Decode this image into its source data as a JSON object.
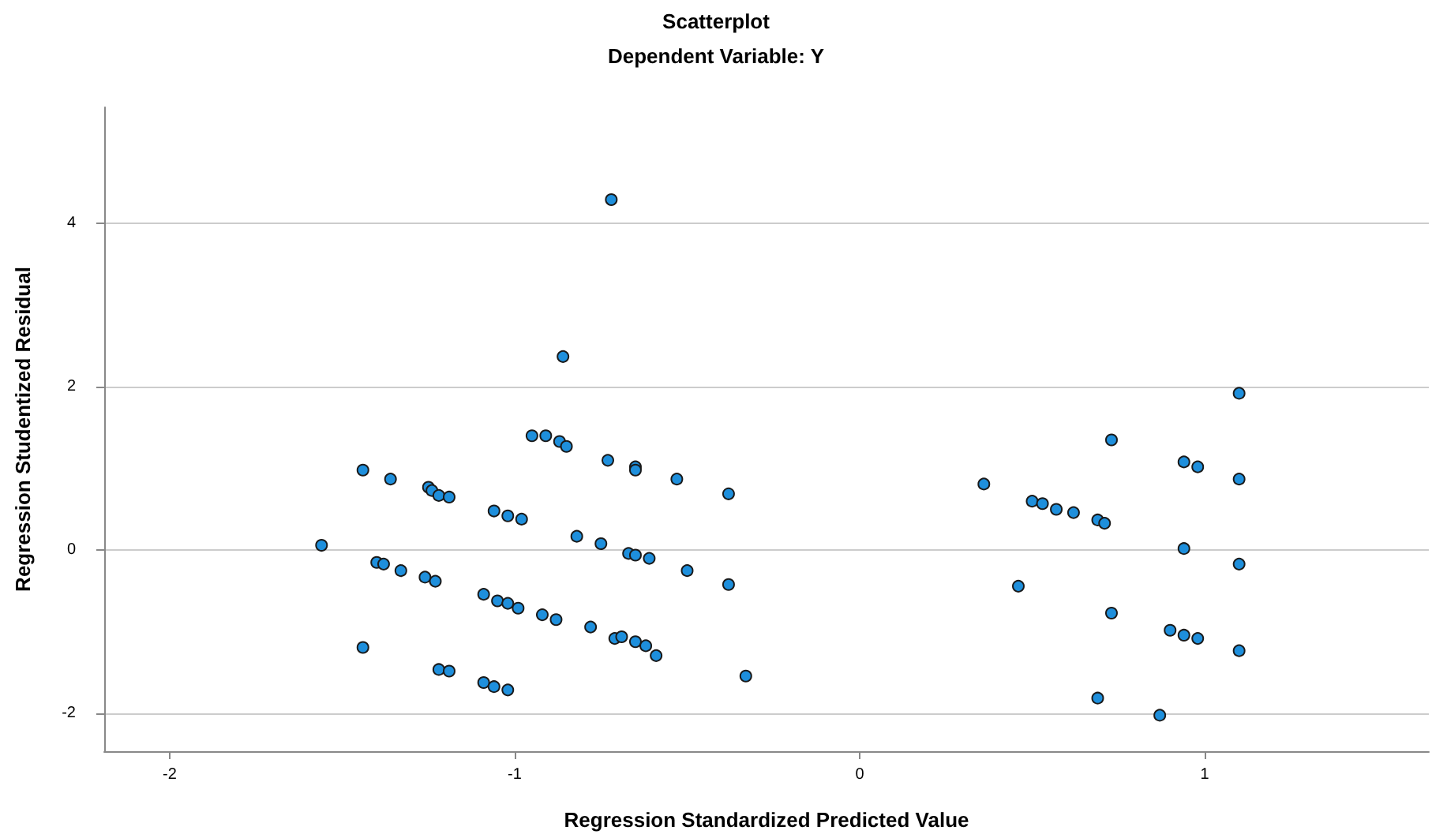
{
  "chart_data": {
    "type": "scatter",
    "title": "Scatterplot",
    "subtitle": "Dependent Variable: Y",
    "xlabel": "Regression Standardized Predicted Value",
    "ylabel": "Regression Studentized Residual",
    "x": [
      -1.56,
      -1.44,
      -1.44,
      -1.4,
      -1.38,
      -1.36,
      -1.33,
      -1.26,
      -1.25,
      -1.24,
      -1.22,
      -1.19,
      -1.23,
      -1.22,
      -1.19,
      -1.09,
      -1.06,
      -1.02,
      -1.09,
      -1.05,
      -1.02,
      -0.99,
      -1.06,
      -1.02,
      -0.98,
      -0.95,
      -0.91,
      -0.87,
      -0.85,
      -0.86,
      -0.92,
      -0.88,
      -0.82,
      -0.78,
      -0.75,
      -0.73,
      -0.72,
      -0.71,
      -0.69,
      -0.65,
      -0.65,
      -0.67,
      -0.65,
      -0.61,
      -0.65,
      -0.62,
      -0.59,
      -0.53,
      -0.5,
      -0.38,
      -0.38,
      -0.33,
      0.36,
      0.46,
      0.5,
      0.53,
      0.57,
      0.62,
      0.69,
      0.71,
      0.69,
      0.73,
      0.73,
      0.87,
      0.9,
      0.94,
      0.94,
      0.94,
      0.98,
      0.98,
      1.1,
      1.1,
      1.1,
      1.1
    ],
    "values": [
      0.06,
      0.98,
      -1.19,
      -0.15,
      -0.17,
      0.87,
      -0.25,
      -0.33,
      0.77,
      0.73,
      0.67,
      0.65,
      -0.38,
      -1.46,
      -1.48,
      -1.62,
      -1.67,
      -1.71,
      -0.54,
      -0.62,
      -0.65,
      -0.71,
      0.48,
      0.42,
      0.38,
      1.4,
      1.4,
      1.33,
      1.27,
      2.37,
      -0.79,
      -0.85,
      0.17,
      -0.94,
      0.08,
      1.1,
      4.29,
      -1.08,
      -1.06,
      1.02,
      0.98,
      -0.04,
      -0.06,
      -0.1,
      -1.12,
      -1.17,
      -1.29,
      0.87,
      -0.25,
      0.69,
      -0.42,
      -1.54,
      0.81,
      -0.44,
      0.6,
      0.57,
      0.5,
      0.46,
      0.37,
      0.33,
      -1.81,
      1.35,
      -0.77,
      -2.02,
      -0.98,
      1.08,
      0.02,
      -1.04,
      1.02,
      -1.08,
      1.92,
      0.87,
      -0.17,
      -1.23
    ],
    "color": "#1e8fdc",
    "marker": "circle",
    "xlim": [
      -2.19,
      1.65
    ],
    "xticks": [
      -2,
      -1,
      0,
      1
    ],
    "ylim": [
      -2.46,
      5.42
    ],
    "yticks": [
      -2,
      0,
      2,
      4
    ],
    "grid": "y"
  }
}
